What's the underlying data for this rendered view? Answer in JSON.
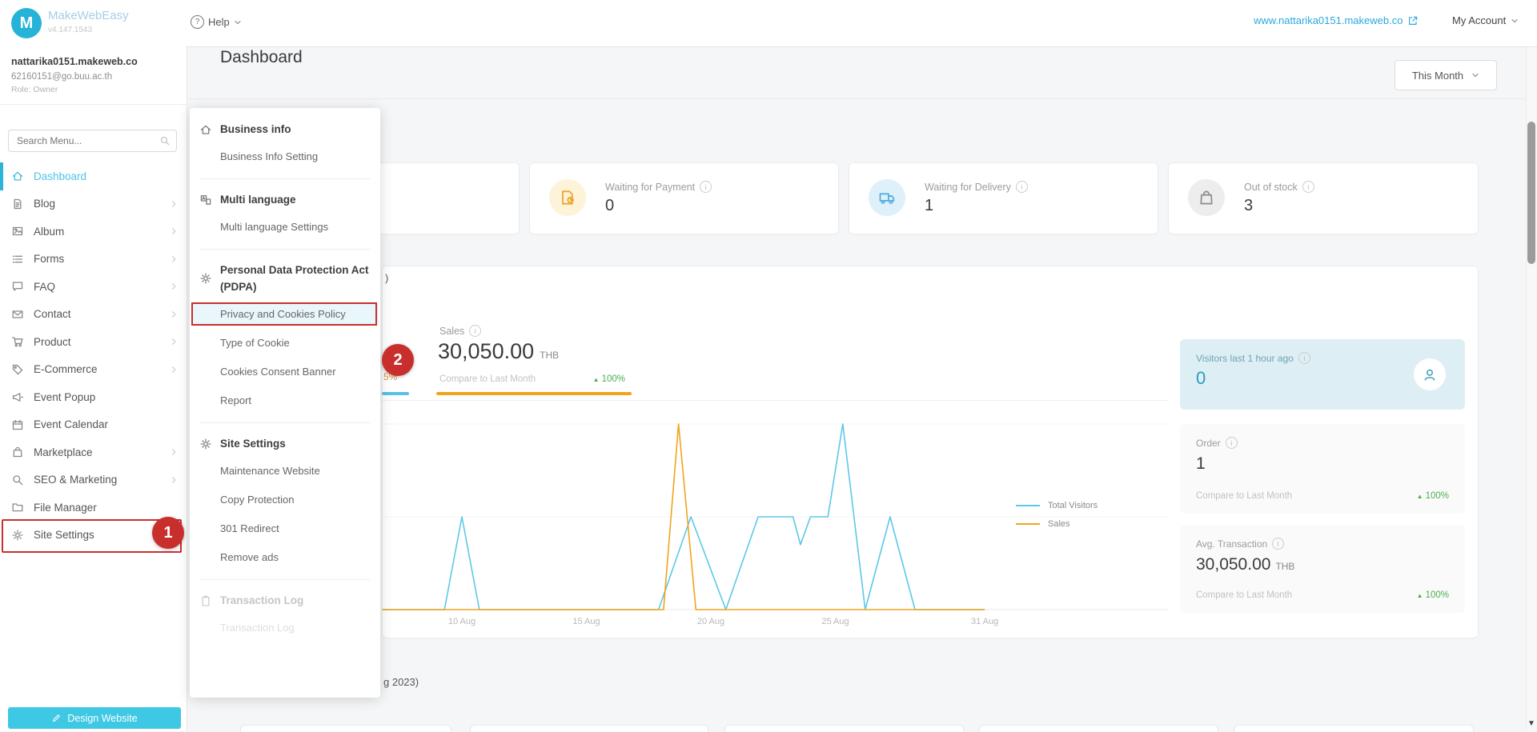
{
  "topbar": {
    "brand": {
      "name": "MakeWebEasy",
      "version": "v4.147.1543",
      "logo_letter": "M"
    },
    "help_label": "Help",
    "site_url": "www.nattarika0151.makeweb.co",
    "my_account_label": "My Account"
  },
  "sidebar": {
    "account": {
      "domain": "nattarika0151.makeweb.co",
      "email": "62160151@go.buu.ac.th",
      "role": "Role: Owner"
    },
    "search_placeholder": "Search Menu...",
    "items": [
      {
        "label": "Dashboard",
        "icon": "home",
        "active": true
      },
      {
        "label": "Blog",
        "icon": "doc",
        "chevron": true
      },
      {
        "label": "Album",
        "icon": "image",
        "chevron": true
      },
      {
        "label": "Forms",
        "icon": "list",
        "chevron": true
      },
      {
        "label": "FAQ",
        "icon": "chat",
        "chevron": true
      },
      {
        "label": "Contact",
        "icon": "mail",
        "chevron": true
      },
      {
        "label": "Product",
        "icon": "cart",
        "chevron": true
      },
      {
        "label": "E-Commerce",
        "icon": "tag",
        "chevron": true
      },
      {
        "label": "Event Popup",
        "icon": "megaphone"
      },
      {
        "label": "Event Calendar",
        "icon": "calendar"
      },
      {
        "label": "Marketplace",
        "icon": "bag",
        "chevron": true
      },
      {
        "label": "SEO & Marketing",
        "icon": "search",
        "chevron": true
      },
      {
        "label": "File Manager",
        "icon": "folder"
      },
      {
        "label": "Site Settings",
        "icon": "gear",
        "annotated": true
      }
    ],
    "design_button": "Design Website"
  },
  "popup": {
    "sections": [
      {
        "header": "Business info",
        "icon": "home",
        "items": [
          {
            "label": "Business Info Setting"
          }
        ]
      },
      {
        "header": "Multi language",
        "icon": "translate",
        "items": [
          {
            "label": "Multi language Settings"
          }
        ]
      },
      {
        "header": "Personal Data Protection Act (PDPA)",
        "icon": "gear",
        "items": [
          {
            "label": "Privacy and Cookies Policy",
            "highlighted": true,
            "annotated": true
          },
          {
            "label": "Type of Cookie"
          },
          {
            "label": "Cookies Consent Banner"
          },
          {
            "label": "Report"
          }
        ]
      },
      {
        "header": "Site Settings",
        "icon": "gear",
        "items": [
          {
            "label": "Maintenance Website"
          },
          {
            "label": "Copy Protection"
          },
          {
            "label": "301 Redirect"
          },
          {
            "label": "Remove ads"
          }
        ]
      },
      {
        "header": "Transaction Log",
        "icon": "clipboard",
        "disabled": true,
        "items": [
          {
            "label": "Transaction Log",
            "faded": true
          }
        ]
      }
    ]
  },
  "annotations": {
    "step1": "1",
    "step2": "2",
    "box_color": "#c9302c"
  },
  "main": {
    "title": "Dashboard",
    "range_selector": "This Month",
    "stat_cards": [
      {
        "label": "",
        "value": ""
      },
      {
        "label": "Waiting for Payment",
        "value": "0",
        "icon": "file-clock",
        "icon_color": "#eda52f",
        "icon_bg": "#fdf3d9"
      },
      {
        "label": "Waiting for Delivery",
        "value": "1",
        "icon": "truck",
        "icon_color": "#54aede",
        "icon_bg": "#def0fa"
      },
      {
        "label": "Out of stock",
        "value": "3",
        "icon": "bag",
        "icon_color": "#8f8f8f",
        "icon_bg": "#ededed"
      }
    ],
    "chart_card": {
      "title_fragment": ")",
      "hidden_tab_fragment": "5%",
      "sales_tab": {
        "label": "Sales",
        "value": "30,050.00",
        "currency": "THB",
        "compare_label": "Compare to Last Month",
        "compare_value": "100%"
      },
      "accent_blue": "#56c2e6",
      "accent_orange": "#f0a41e"
    },
    "side_cards": {
      "visitors": {
        "label": "Visitors last 1 hour ago",
        "value": "0"
      },
      "order": {
        "label": "Order",
        "value": "1",
        "compare_label": "Compare to Last Month",
        "compare_value": "100%"
      },
      "avg_transaction": {
        "label": "Avg. Transaction",
        "value": "30,050.00",
        "currency": "THB",
        "compare_label": "Compare to Last Month",
        "compare_value": "100%"
      }
    },
    "bottom_section_fragment": "g 2023)"
  },
  "chart_data": {
    "type": "line",
    "x_tick_labels": [
      "10 Aug",
      "15 Aug",
      "20 Aug",
      "25 Aug",
      "31 Aug"
    ],
    "x_tick_days": [
      10,
      15,
      20,
      25,
      31
    ],
    "visible_day_range": [
      6.8,
      31
    ],
    "grid": "horizontal-faint",
    "legend_position": "right",
    "series": [
      {
        "name": "Total Visitors",
        "color": "#5ec7e8",
        "max": 2,
        "points": [
          [
            6.8,
            0
          ],
          [
            9.3,
            0
          ],
          [
            10,
            1
          ],
          [
            10.7,
            0
          ],
          [
            17.9,
            0
          ],
          [
            19.2,
            1
          ],
          [
            20.6,
            0
          ],
          [
            21.9,
            1
          ],
          [
            23.3,
            1
          ],
          [
            23.6,
            0.7
          ],
          [
            24,
            1
          ],
          [
            24.7,
            1
          ],
          [
            25.3,
            2
          ],
          [
            26.2,
            0
          ],
          [
            27.2,
            1
          ],
          [
            28.2,
            0
          ],
          [
            31,
            0
          ]
        ]
      },
      {
        "name": "Sales",
        "color": "#f0a41e",
        "max": 30050,
        "points": [
          [
            6.8,
            0
          ],
          [
            18.1,
            0
          ],
          [
            18.7,
            30050
          ],
          [
            19.4,
            0
          ],
          [
            31,
            0
          ]
        ]
      }
    ]
  }
}
